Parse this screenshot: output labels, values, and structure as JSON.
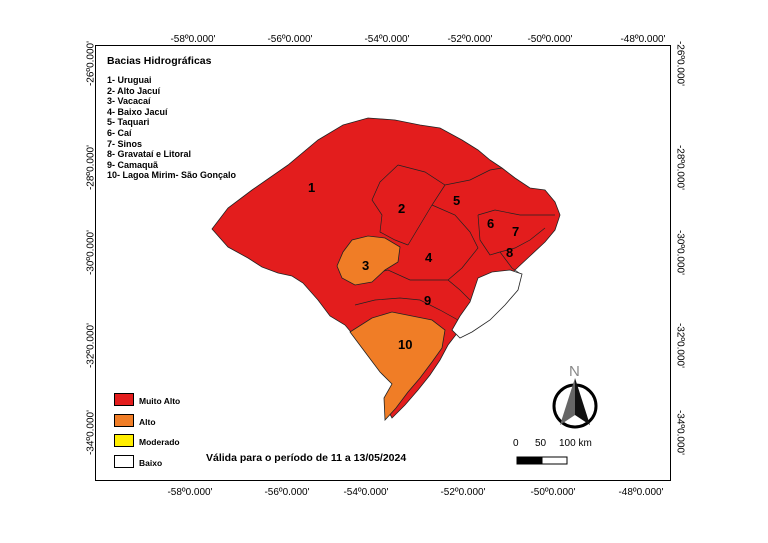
{
  "map": {
    "legend_title": "Bacias Hidrográficas",
    "basins": [
      "1- Uruguai",
      "2- Alto Jacuí",
      "3- Vacacaí",
      "4- Baixo Jacuí",
      "5- Taquari",
      "6- Caí",
      "7- Sinos",
      "8- Gravataí e Litoral",
      "9- Camaquã",
      "10- Lagoa Mirim- São Gonçalo"
    ],
    "basin_numbers": [
      "1",
      "2",
      "3",
      "4",
      "5",
      "6",
      "7",
      "8",
      "9",
      "10"
    ],
    "basin_levels": {
      "1": "Muito Alto",
      "2": "Muito Alto",
      "3": "Alto",
      "4": "Muito Alto",
      "5": "Muito Alto",
      "6": "Muito Alto",
      "7": "Muito Alto",
      "8": "Muito Alto",
      "9": "Muito Alto",
      "10": "Alto"
    },
    "levels": [
      {
        "label": "Muito Alto",
        "color": "#e31d1d"
      },
      {
        "label": "Alto",
        "color": "#f07d26"
      },
      {
        "label": "Moderado",
        "color": "#ffee00"
      },
      {
        "label": "Baixo",
        "color": "#ffffff"
      }
    ],
    "validity": "Válida para o período de 11 a 13/05/2024",
    "longitude_ticks": [
      "-58º0.000'",
      "-56º0.000'",
      "-54º0.000'",
      "-52º0.000'",
      "-50º0.000'",
      "-48º0.000'"
    ],
    "latitude_ticks": [
      "-26º0.000'",
      "-28º0.000'",
      "-30º0.000'",
      "-32º0.000'",
      "-34º0.000'"
    ],
    "north_label": "N",
    "scale": {
      "labels": [
        "0",
        "50",
        "100 km"
      ]
    }
  }
}
